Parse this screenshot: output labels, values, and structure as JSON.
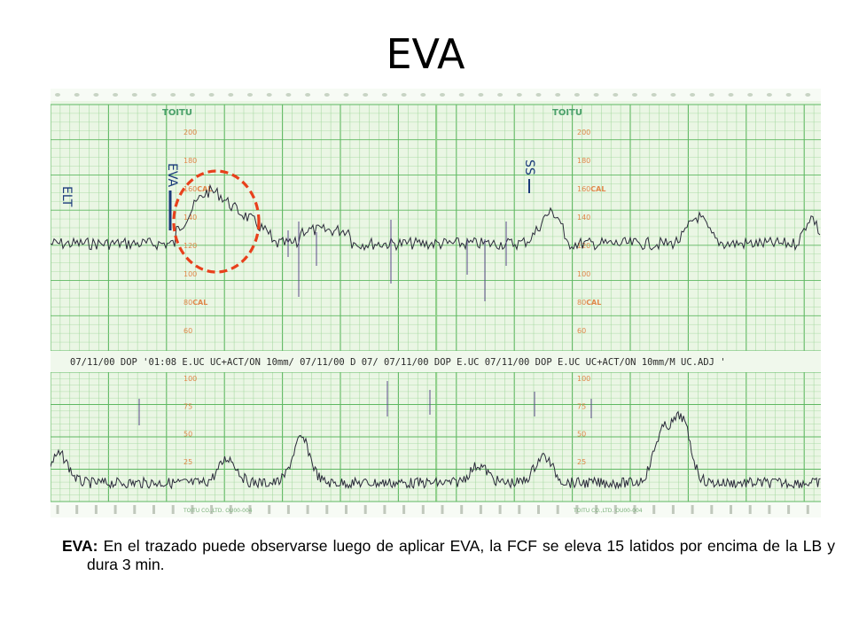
{
  "slide": {
    "title": "EVA",
    "caption_term": "EVA:",
    "caption_text": " En el trazado puede observarse luego de aplicar EVA, la FCF se eleva 15 latidos por encima de la LB y dura 3 min."
  },
  "strip": {
    "brand_left": "TOITU",
    "brand_right": "TOITU",
    "annotations": {
      "left_mark": "ELT",
      "eva_mark": "EVA",
      "ss_mark": "SS"
    },
    "fhr_scale_labels": [
      "200",
      "180",
      "160",
      "140",
      "120",
      "100",
      "80",
      "60"
    ],
    "fhr_cal_labels": [
      "160",
      "80"
    ],
    "cal_suffix": "CAL",
    "uc_scale_labels": [
      "100",
      "75",
      "50",
      "25"
    ],
    "printout_line": "07/11/00 DOP '01:08 E.UC UC+ACT/ON 10mm/ 07/11/00 D 07/ 07/11/00 DOP E.UC 07/11/00 DOP E.UC UC+ACT/ON 10mm/M UC.ADJ '",
    "footer_left": "TOITU CO.,LTD.  OU00-004",
    "footer_right": "TOITU CO.,LTD.  OU00-004",
    "colors": {
      "paper": "#eaf6e4",
      "grid": "#9fd69a",
      "grid_major": "#5fb862",
      "trace": "#2a2a3a",
      "scale_text": "#e0874a",
      "highlight": "#e8401c"
    }
  }
}
